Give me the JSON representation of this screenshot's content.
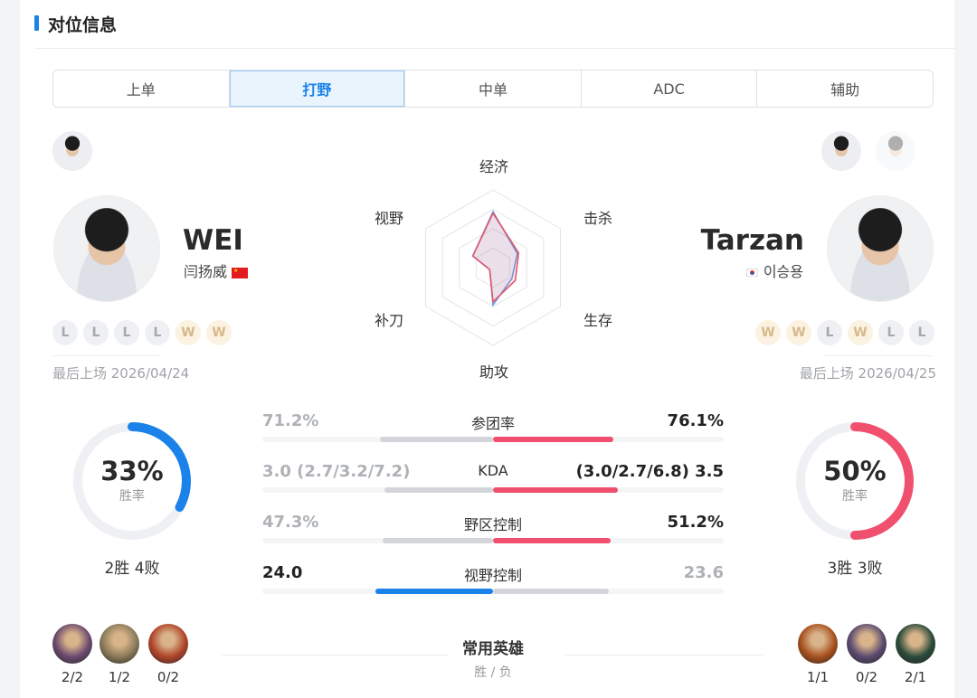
{
  "section_title": "对位信息",
  "tabs": [
    {
      "label": "上单"
    },
    {
      "label": "打野",
      "active": true
    },
    {
      "label": "中单"
    },
    {
      "label": "ADC"
    },
    {
      "label": "辅助"
    }
  ],
  "left_player": {
    "name": "WEI",
    "real_name": "闫扬威",
    "country": "CN",
    "recent": [
      "L",
      "L",
      "L",
      "L",
      "W",
      "W"
    ],
    "last_played": "最后上场 2026/04/24",
    "win_rate": "33%",
    "win_rate_value": 0.33,
    "win_rate_label": "胜率",
    "record": "2胜 4败",
    "color": "#1a82e8",
    "champions": [
      {
        "icon": "champion-1-icon",
        "record": "2/2"
      },
      {
        "icon": "champion-2-icon",
        "record": "1/2"
      },
      {
        "icon": "champion-3-icon",
        "record": "0/2"
      }
    ]
  },
  "right_player": {
    "name": "Tarzan",
    "real_name": "이승용",
    "country": "KR",
    "recent": [
      "W",
      "W",
      "L",
      "W",
      "L",
      "L"
    ],
    "last_played": "最后上场 2026/04/25",
    "win_rate": "50%",
    "win_rate_value": 0.5,
    "win_rate_label": "胜率",
    "record": "3胜 3败",
    "color": "#f0506e",
    "champions": [
      {
        "icon": "champion-4-icon",
        "record": "1/1"
      },
      {
        "icon": "champion-5-icon",
        "record": "0/2"
      },
      {
        "icon": "champion-6-icon",
        "record": "2/1"
      }
    ]
  },
  "radar": {
    "axes": [
      "经济",
      "击杀",
      "生存",
      "助攻",
      "补刀",
      "视野"
    ],
    "left_values": [
      0.72,
      0.36,
      0.28,
      0.48,
      0.05,
      0.3
    ],
    "right_values": [
      0.7,
      0.38,
      0.33,
      0.44,
      0.05,
      0.3
    ]
  },
  "stats": [
    {
      "label": "参团率",
      "left": "71.2%",
      "right": "76.1%",
      "left_bar": 0.49,
      "right_bar": 0.52,
      "winner": "right"
    },
    {
      "label": "KDA",
      "left": "3.0 (2.7/3.2/7.2)",
      "right": "(3.0/2.7/6.8) 3.5",
      "left_bar": 0.47,
      "right_bar": 0.54,
      "winner": "right"
    },
    {
      "label": "野区控制",
      "left": "47.3%",
      "right": "51.2%",
      "left_bar": 0.48,
      "right_bar": 0.51,
      "winner": "right"
    },
    {
      "label": "视野控制",
      "left": "24.0",
      "right": "23.6",
      "left_bar": 0.51,
      "right_bar": 0.5,
      "winner": "left"
    }
  ],
  "champions_title": "常用英雄",
  "champions_subtitle": "胜 / 负"
}
